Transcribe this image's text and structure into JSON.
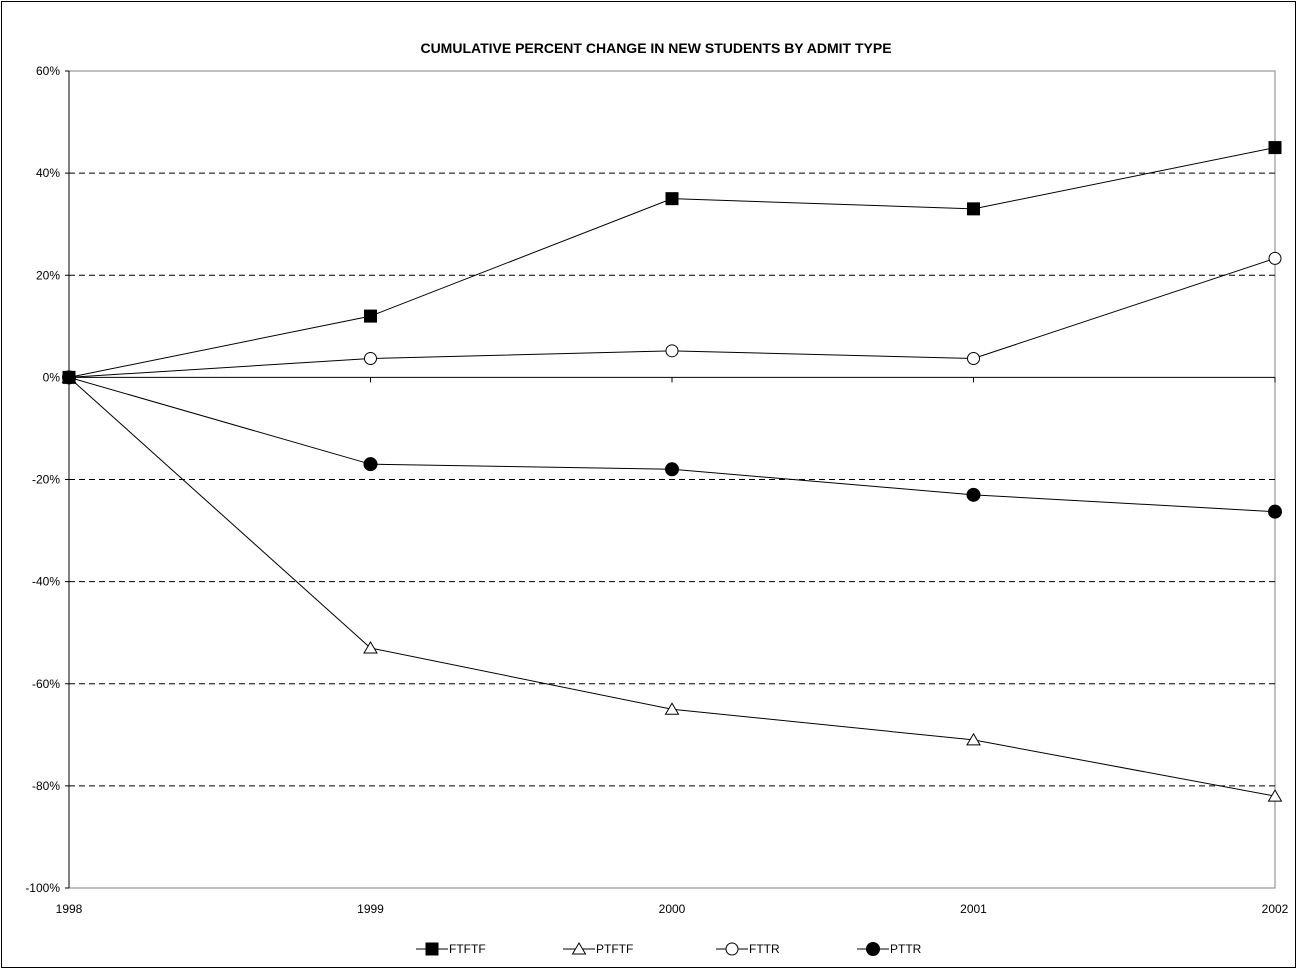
{
  "chart_data": {
    "type": "line",
    "title": "CUMULATIVE PERCENT CHANGE IN NEW STUDENTS BY ADMIT TYPE",
    "xlabel": "",
    "ylabel": "",
    "categories": [
      "1998",
      "1999",
      "2000",
      "2001",
      "2002"
    ],
    "ylim": [
      -100,
      60
    ],
    "yticks": [
      60,
      40,
      20,
      0,
      -20,
      -40,
      -60,
      -80,
      -100
    ],
    "ytick_labels": [
      "60%",
      "40%",
      "20%",
      "0%",
      "-20%",
      "-40%",
      "-60%",
      "-80%",
      "-100%"
    ],
    "grid": "horizontal dashed",
    "legend_position": "bottom",
    "series": [
      {
        "name": "FTFTF",
        "marker": "filled-square",
        "values": [
          0,
          12,
          35,
          33,
          45
        ]
      },
      {
        "name": "PTFTF",
        "marker": "open-triangle",
        "values": [
          0,
          -53,
          -65,
          -71,
          -82
        ]
      },
      {
        "name": "FTTR",
        "marker": "open-circle",
        "values": [
          0,
          3.7,
          5.2,
          3.7,
          23.3
        ]
      },
      {
        "name": "PTTR",
        "marker": "filled-circle",
        "values": [
          0,
          -17,
          -18,
          -23,
          -26.3
        ]
      }
    ]
  }
}
